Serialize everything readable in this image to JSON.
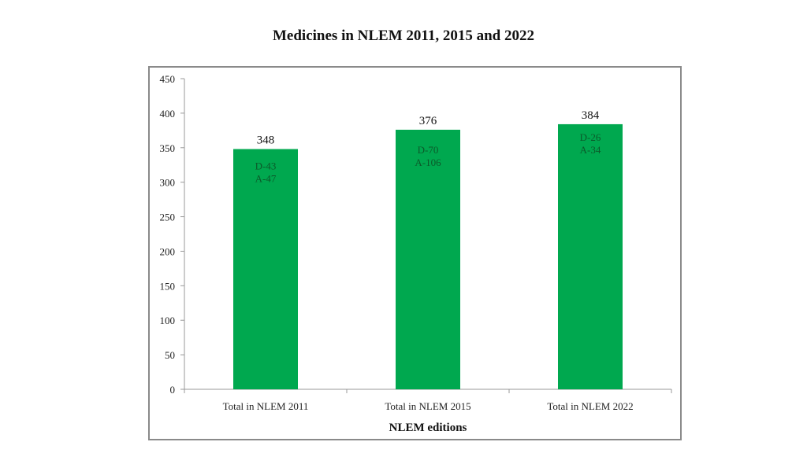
{
  "chart_data": {
    "type": "bar",
    "title": "Medicines in NLEM 2011, 2015 and 2022",
    "xlabel": "NLEM editions",
    "ylabel": "",
    "categories": [
      "Total in NLEM 2011",
      "Total in NLEM 2015",
      "Total in NLEM 2022"
    ],
    "values": [
      348,
      376,
      384
    ],
    "data_labels": [
      "348",
      "376",
      "384"
    ],
    "annotations": [
      [
        "D-43",
        "A-47"
      ],
      [
        "D-70",
        "A-106"
      ],
      [
        "D-26",
        "A-34"
      ]
    ],
    "ylim": [
      0,
      450
    ],
    "yticks": [
      0,
      50,
      100,
      150,
      200,
      250,
      300,
      350,
      400,
      450
    ],
    "grid": false,
    "legend": "none",
    "bar_color": "#00a84f",
    "annotation_color": "#0b5a2a"
  }
}
